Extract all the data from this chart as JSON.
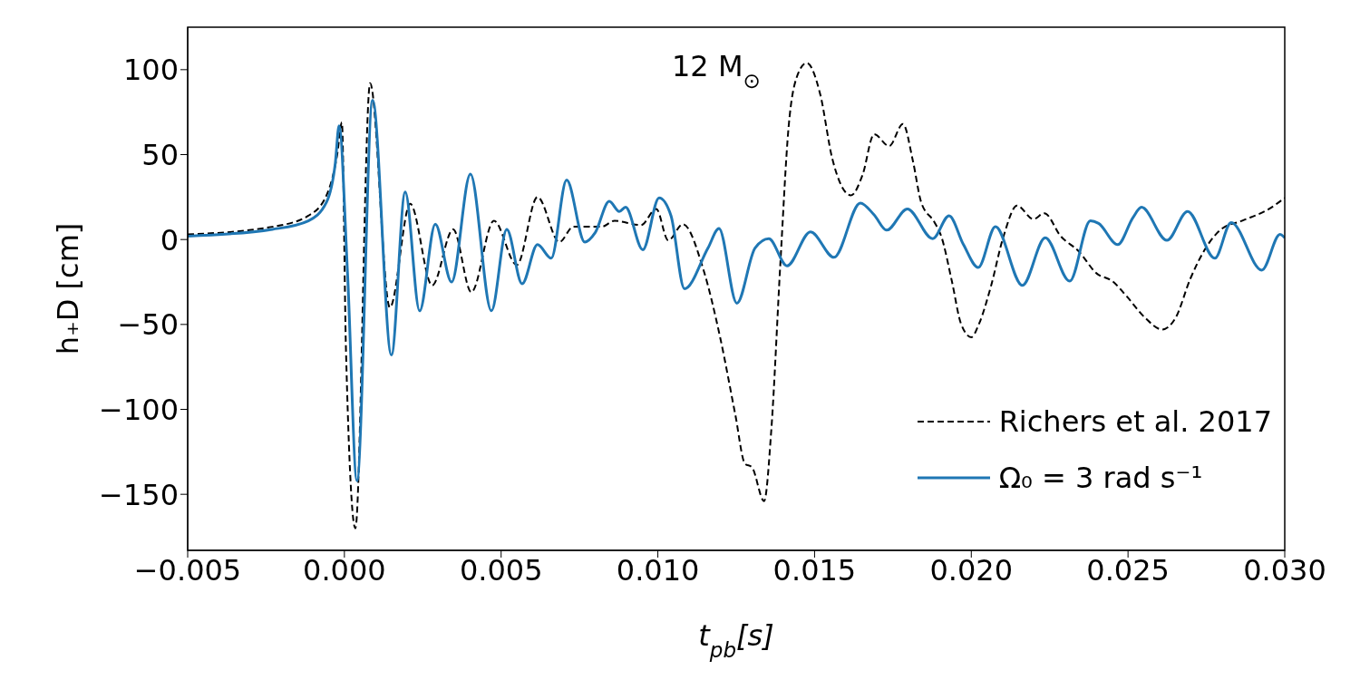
{
  "chart_data": {
    "type": "line",
    "xlabel": "t$_{pb}$[s]",
    "ylabel": "h₊D [cm]",
    "annotations": [
      "12 M$_{⊙}$"
    ],
    "xlim": [
      -0.005,
      0.03
    ],
    "xticks": [
      -0.005,
      {
        "value": 0,
        "label": "0.000"
      },
      0.005,
      {
        "value": 0.01,
        "label": "0.010"
      },
      0.015,
      {
        "value": 0.02,
        "label": "0.020"
      },
      0.025,
      {
        "value": 0.03,
        "label": "0.030"
      }
    ],
    "ylim": [
      -183,
      125
    ],
    "yticks": [
      -150,
      -100,
      -50,
      0,
      50,
      100
    ],
    "grid": false,
    "legend": "bottom right",
    "series": [
      {
        "name": "Richers et al. 2017",
        "color": "#000000",
        "line_style": "dashed",
        "x": [
          -0.005,
          -0.0023,
          -0.00115,
          -0.00057,
          -0.00023,
          -8e-05,
          5e-05,
          0.00035,
          0.00082,
          0.00145,
          0.0021,
          0.0028,
          0.00347,
          0.00405,
          0.00477,
          0.0055,
          0.00616,
          0.00686,
          0.0073,
          0.0082,
          0.00862,
          0.00946,
          0.00995,
          0.01033,
          0.0108,
          0.01145,
          0.01198,
          0.01247,
          0.01278,
          0.013,
          0.01339,
          0.01362,
          0.01391,
          0.01417,
          0.01443,
          0.01475,
          0.01518,
          0.01556,
          0.01616,
          0.01653,
          0.0169,
          0.01738,
          0.01782,
          0.01814,
          0.0184,
          0.01883,
          0.01904,
          0.01938,
          0.01967,
          0.02,
          0.02025,
          0.02062,
          0.02103,
          0.02146,
          0.02198,
          0.02233,
          0.02285,
          0.02343,
          0.024,
          0.0245,
          0.02496,
          0.02554,
          0.02609,
          0.02652,
          0.02699,
          0.02748,
          0.02797,
          0.02863,
          0.0295,
          0.03
        ],
        "values": [
          3,
          7.5,
          14,
          26,
          50,
          69,
          -65,
          -170,
          92,
          -40,
          21,
          -27,
          6,
          -31,
          11,
          -15,
          25,
          -1.5,
          7.5,
          7.5,
          11,
          8.5,
          18,
          -0.5,
          9,
          -17.5,
          -57,
          -103,
          -132,
          -134,
          -154,
          -112,
          -13.5,
          66,
          95.5,
          104,
          85.5,
          48,
          26,
          38,
          62,
          55,
          68,
          46,
          22,
          10,
          2,
          -24.5,
          -49.5,
          -57.5,
          -49.5,
          -28,
          2,
          20,
          12,
          15.5,
          2,
          -7,
          -20,
          -24.5,
          -33.5,
          -46,
          -53,
          -46,
          -23,
          -5,
          6,
          11,
          18,
          24.5
        ]
      },
      {
        "name": "Ω₀ = 3 rad s⁻¹",
        "color": "#1f77b4",
        "line_style": "solid",
        "x": [
          -0.005,
          -0.0023,
          -0.00115,
          -0.00057,
          -0.00029,
          -0.00017,
          0.0001,
          0.0004,
          0.0009,
          0.0015,
          0.00194,
          0.0024,
          0.0029,
          0.00342,
          0.00402,
          0.00469,
          0.00518,
          0.00567,
          0.00616,
          0.0066,
          0.00709,
          0.00767,
          0.008,
          0.00845,
          0.00877,
          0.00897,
          0.00952,
          0.01004,
          0.01042,
          0.01085,
          0.0116,
          0.01195,
          0.01252,
          0.0131,
          0.01354,
          0.01412,
          0.01487,
          0.01562,
          0.01646,
          0.0169,
          0.0173,
          0.01796,
          0.01877,
          0.01929,
          0.01975,
          0.02022,
          0.02077,
          0.02163,
          0.02236,
          0.02314,
          0.0238,
          0.02406,
          0.02467,
          0.02516,
          0.02543,
          0.02624,
          0.0269,
          0.02777,
          0.02829,
          0.02927,
          0.02985,
          0.03
        ],
        "values": [
          2,
          6,
          11,
          22,
          45,
          67,
          -20,
          -142,
          82,
          -68,
          28,
          -42,
          9,
          -25,
          38.5,
          -42,
          6,
          -26,
          -3,
          -11,
          35,
          -1.5,
          4,
          22.5,
          16.5,
          19,
          -6,
          24.5,
          14,
          -29,
          -5,
          6.5,
          -37.5,
          -5,
          0.5,
          -15.5,
          4.5,
          -10.5,
          21.5,
          14.5,
          5.5,
          18,
          0.5,
          14,
          -3,
          -16.5,
          7.5,
          -27,
          1,
          -24.5,
          11,
          9.5,
          -3,
          13,
          19,
          -0.5,
          16.5,
          -11,
          10,
          -18,
          3,
          1
        ]
      }
    ]
  }
}
